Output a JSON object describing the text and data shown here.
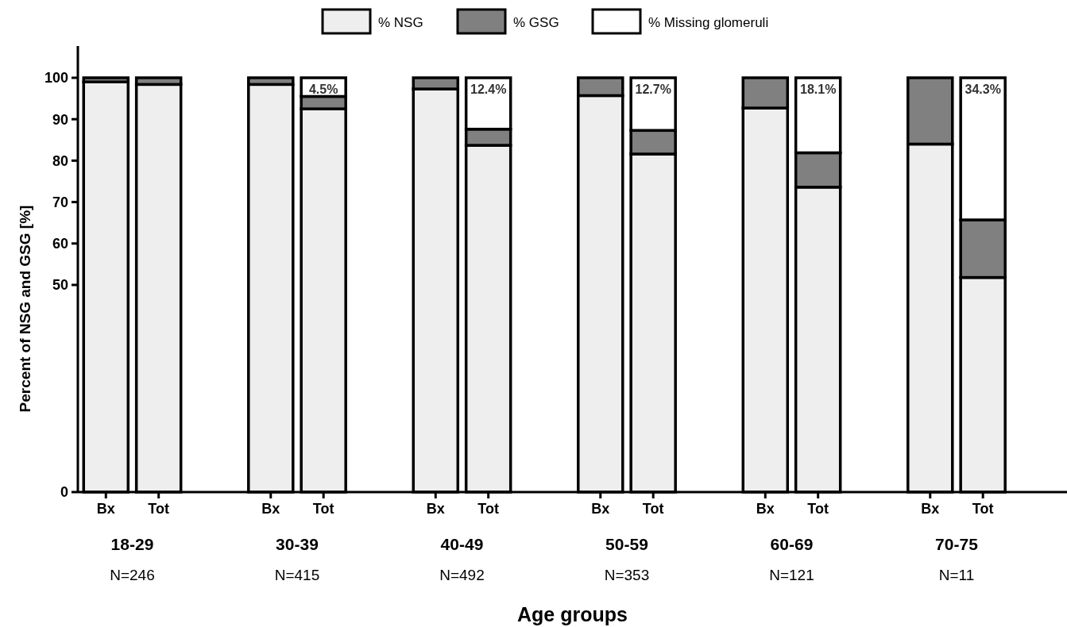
{
  "chart_data": {
    "type": "bar",
    "stacked": true,
    "xlabel": "Age groups",
    "ylabel": "Percent of  NSG and GSG [%]",
    "categories": [
      "Bx",
      "Tot",
      "Bx",
      "Tot",
      "Bx",
      "Tot",
      "Bx",
      "Tot",
      "Bx",
      "Tot",
      "Bx",
      "Tot"
    ],
    "series": [
      {
        "name": "% NSG",
        "color": "#eeeeee",
        "values": [
          99.0,
          98.4,
          98.4,
          92.5,
          97.3,
          83.7,
          95.7,
          81.6,
          92.7,
          73.6,
          84.0,
          51.8
        ]
      },
      {
        "name": "% GSG",
        "color": "#808080",
        "values": [
          1.0,
          1.6,
          1.6,
          3.0,
          2.7,
          3.9,
          4.3,
          5.7,
          7.3,
          8.3,
          16.0,
          13.9
        ]
      },
      {
        "name": "% Missing glomeruli",
        "color": "#ffffff",
        "values": [
          0,
          0,
          0,
          4.5,
          0,
          12.4,
          0,
          12.7,
          0,
          18.1,
          0,
          34.3
        ],
        "value_labels": [
          null,
          null,
          null,
          "4.5%",
          null,
          "12.4%",
          null,
          "12.7%",
          null,
          "18.1%",
          null,
          "34.3%"
        ]
      }
    ],
    "ylim": [
      0,
      100
    ],
    "yticks": [
      0,
      50,
      60,
      70,
      80,
      90,
      100
    ],
    "legend": "top",
    "grid": false,
    "annotations": [
      "18-29",
      "N=246",
      "30-39",
      "N=415",
      "40-49",
      "N=492",
      "50-59",
      "N=353",
      "60-69",
      "N=121",
      "70-75",
      "N=11"
    ]
  }
}
